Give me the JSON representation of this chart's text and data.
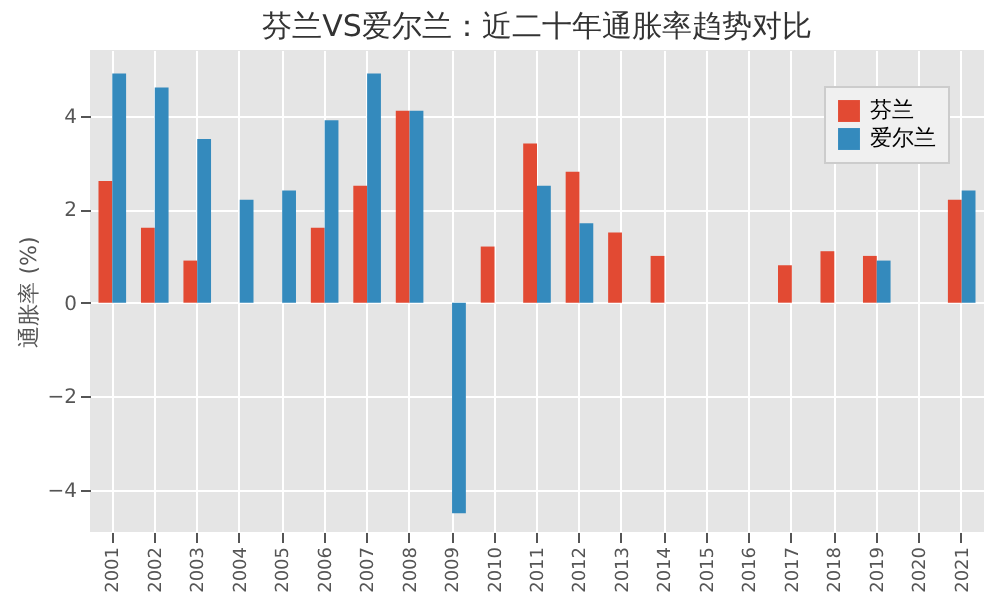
{
  "chart_data": {
    "type": "bar",
    "title": "芬兰VS爱尔兰：近二十年通胀率趋势对比",
    "ylabel": "通胀率 (%)",
    "categories": [
      "2001",
      "2002",
      "2003",
      "2004",
      "2005",
      "2006",
      "2007",
      "2008",
      "2009",
      "2010",
      "2011",
      "2012",
      "2013",
      "2014",
      "2015",
      "2016",
      "2017",
      "2018",
      "2019",
      "2020",
      "2021"
    ],
    "series": [
      {
        "name": "芬兰",
        "color": "#e24a33",
        "values": [
          2.6,
          1.6,
          0.9,
          null,
          null,
          1.6,
          2.5,
          4.1,
          null,
          1.2,
          3.4,
          2.8,
          1.5,
          1.0,
          null,
          null,
          0.8,
          1.1,
          1.0,
          null,
          2.2
        ]
      },
      {
        "name": "爱尔兰",
        "color": "#348abd",
        "values": [
          4.9,
          4.6,
          3.5,
          2.2,
          2.4,
          3.9,
          4.9,
          4.1,
          -4.5,
          null,
          2.5,
          1.7,
          null,
          null,
          null,
          null,
          null,
          null,
          0.9,
          null,
          2.4
        ]
      }
    ],
    "ylim": [
      -4.9,
      5.4
    ],
    "yticks": [
      -4,
      -2,
      0,
      2,
      4
    ],
    "grid": true,
    "legend": "top right"
  }
}
